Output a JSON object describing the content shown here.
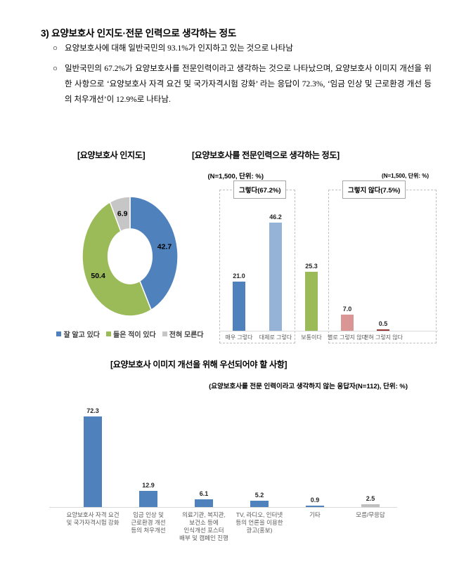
{
  "heading": "3) 요양보호사 인지도·전문 인력으로 생각하는 정도",
  "bullet_marker": "○",
  "bullets": [
    "요양보호사에 대해 일반국민의 93.1%가 인지하고 있는 것으로 나타남",
    "일반국민의 67.2%가 요양보호사를 전문인력이라고 생각하는 것으로 나타났으며, 요양보호사 이미지 개선을 위한 사항으로 ‘요양보호사 자격 요건 및 국가자격시험 강화’ 라는 응답이 72.3%, ‘임금 인상 및 근로환경 개선 등의 처우개선’이 12.9%로 나타남."
  ],
  "colors": {
    "steel_blue": "#4f81bd",
    "light_blue": "#95b3d7",
    "olive_green": "#9bbb59",
    "donut_gray": "#c6c6c6",
    "salmon": "#d99694",
    "dark_red": "#953735",
    "bar_gray": "#bfbfbf",
    "axis_gray": "#d9d9d9"
  },
  "chart_data": [
    {
      "type": "pie",
      "subtype": "donut",
      "title": "[요양보호사 인지도]",
      "note": "(N=1,500, 단위: %)",
      "labels": [
        "잘 알고 있다",
        "들은 적이 있다",
        "전혀 모른다"
      ],
      "values": [
        42.7,
        50.4,
        6.9
      ],
      "colors": [
        "#4f81bd",
        "#9bbb59",
        "#c6c6c6"
      ],
      "legend_position": "bottom",
      "start_angle_deg": 0,
      "direction": "clockwise"
    },
    {
      "type": "bar",
      "title": "[요양보호사를 전문인력으로 생각하는 정도]",
      "note": "(N=1,500, 단위: %)",
      "categories": [
        "매우 그렇다",
        "대체로 그렇다",
        "보통이다",
        "별로 그렇지 않다",
        "전혀 그렇지 않다"
      ],
      "values": [
        21.0,
        46.2,
        25.3,
        7.0,
        0.5
      ],
      "colors": [
        "#4f81bd",
        "#95b3d7",
        "#9bbb59",
        "#d99694",
        "#953735"
      ],
      "group_annotations": [
        {
          "label": "그렇다(67.2%)",
          "covers": [
            "매우 그렇다",
            "대체로 그렇다"
          ]
        },
        {
          "label": "그렇지 않다(7.5%)",
          "covers": [
            "별로 그렇지 않다",
            "전혀 그렇지 않다"
          ]
        }
      ],
      "ylim": [
        0,
        60
      ],
      "grid": false,
      "value_labels": true
    },
    {
      "type": "bar",
      "title": "[요양보호사 이미지 개선을 위해 우선되어야 할 사항]",
      "note": "(요양보호사를 전문 인력이라고 생각하지 않는 응답자(N=112), 단위: %)",
      "categories": [
        "요양보호사 자격 요건\n및 국가자격시험 강화",
        "임금 인상 및\n근로환경 개선\n등의 처우개선",
        "의료기관, 복지관,\n보건소 등에\n인식개선 포스터\n배부 및 캠페인 진행",
        "TV, 라디오, 인터넷\n등의 언론을 이용한\n광고(홍보)",
        "기타",
        "모름/무응답"
      ],
      "values": [
        72.3,
        12.9,
        6.1,
        5.2,
        0.9,
        2.5
      ],
      "colors": [
        "#4f81bd",
        "#4f81bd",
        "#4f81bd",
        "#4f81bd",
        "#4f81bd",
        "#bfbfbf"
      ],
      "ylim": [
        0,
        80
      ],
      "grid": false,
      "value_labels": true
    }
  ]
}
